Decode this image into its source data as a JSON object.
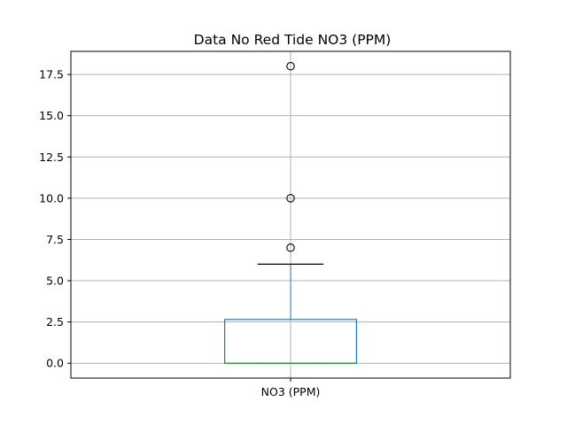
{
  "chart_data": {
    "type": "box",
    "title": "Data No Red Tide NO3 (PPM)",
    "xlabel": "",
    "ylabel": "",
    "categories": [
      "NO3 (PPM)"
    ],
    "ylim": [
      -0.9,
      18.9
    ],
    "yticks": [
      0.0,
      2.5,
      5.0,
      7.5,
      10.0,
      12.5,
      15.0,
      17.5
    ],
    "ytick_labels": [
      "0.0",
      "2.5",
      "5.0",
      "7.5",
      "10.0",
      "12.5",
      "15.0",
      "17.5"
    ],
    "grid": true,
    "series": [
      {
        "category": "NO3 (PPM)",
        "whisker_low": 0.0,
        "q1": 0.0,
        "median": 0.0,
        "q3": 2.65,
        "whisker_high": 6.0,
        "outliers": [
          7.0,
          10.0,
          18.0
        ]
      }
    ],
    "colors": {
      "box": "#1f77b4",
      "median": "#2ca02c",
      "whisker": "#1f77b4",
      "cap": "#000000",
      "outlier": "#000000",
      "grid": "#b0b0b0"
    }
  }
}
